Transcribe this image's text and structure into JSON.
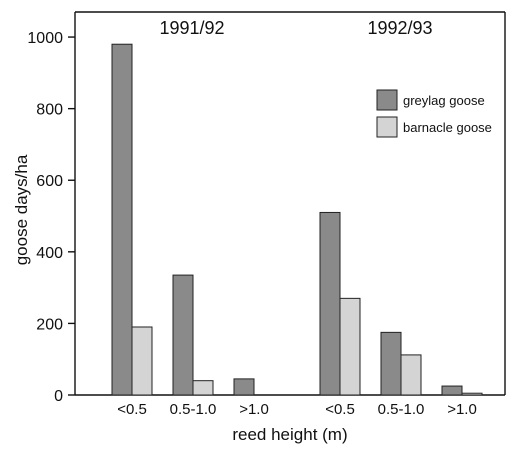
{
  "chart_data": {
    "type": "bar",
    "ylabel": "goose days/ha",
    "xlabel": "reed height (m)",
    "ylim": [
      0,
      1070
    ],
    "yticks": [
      0,
      200,
      400,
      600,
      800,
      1000
    ],
    "grid": false,
    "legend_position": "top-right",
    "groups": [
      {
        "label": "1991/92",
        "categories": [
          "<0.5",
          "0.5-1.0",
          ">1.0"
        ]
      },
      {
        "label": "1992/93",
        "categories": [
          "<0.5",
          "0.5-1.0",
          ">1.0"
        ]
      }
    ],
    "series": [
      {
        "name": "greylag goose",
        "color": "#8a8a8a",
        "values": [
          980,
          335,
          45,
          510,
          175,
          25
        ]
      },
      {
        "name": "barnacle goose",
        "color": "#d4d4d4",
        "values": [
          190,
          40,
          0,
          270,
          112,
          5
        ]
      }
    ]
  }
}
